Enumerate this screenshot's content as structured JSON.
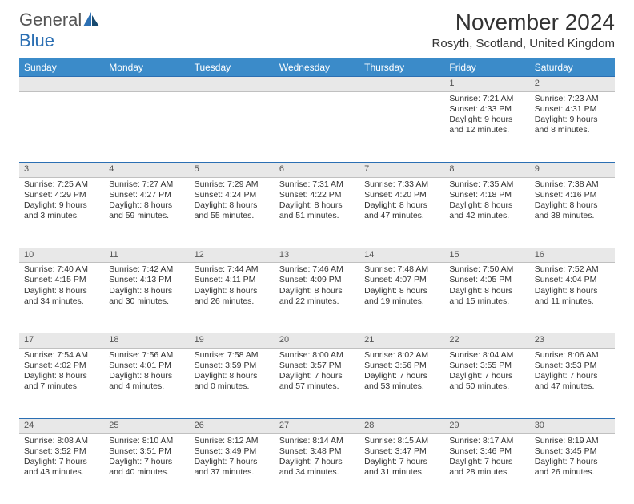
{
  "brand": {
    "word1": "General",
    "word2": "Blue"
  },
  "title": "November 2024",
  "location": "Rosyth, Scotland, United Kingdom",
  "colors": {
    "header_bg": "#3b8bc9",
    "header_text": "#ffffff",
    "daynum_bg": "#e8e8e8",
    "border_top": "#2b6fb3",
    "text": "#333333",
    "brand_blue": "#2b6fb3"
  },
  "dayHeaders": [
    "Sunday",
    "Monday",
    "Tuesday",
    "Wednesday",
    "Thursday",
    "Friday",
    "Saturday"
  ],
  "weeks": [
    [
      null,
      null,
      null,
      null,
      null,
      {
        "n": "1",
        "sr": "Sunrise: 7:21 AM",
        "ss": "Sunset: 4:33 PM",
        "dl": "Daylight: 9 hours and 12 minutes."
      },
      {
        "n": "2",
        "sr": "Sunrise: 7:23 AM",
        "ss": "Sunset: 4:31 PM",
        "dl": "Daylight: 9 hours and 8 minutes."
      }
    ],
    [
      {
        "n": "3",
        "sr": "Sunrise: 7:25 AM",
        "ss": "Sunset: 4:29 PM",
        "dl": "Daylight: 9 hours and 3 minutes."
      },
      {
        "n": "4",
        "sr": "Sunrise: 7:27 AM",
        "ss": "Sunset: 4:27 PM",
        "dl": "Daylight: 8 hours and 59 minutes."
      },
      {
        "n": "5",
        "sr": "Sunrise: 7:29 AM",
        "ss": "Sunset: 4:24 PM",
        "dl": "Daylight: 8 hours and 55 minutes."
      },
      {
        "n": "6",
        "sr": "Sunrise: 7:31 AM",
        "ss": "Sunset: 4:22 PM",
        "dl": "Daylight: 8 hours and 51 minutes."
      },
      {
        "n": "7",
        "sr": "Sunrise: 7:33 AM",
        "ss": "Sunset: 4:20 PM",
        "dl": "Daylight: 8 hours and 47 minutes."
      },
      {
        "n": "8",
        "sr": "Sunrise: 7:35 AM",
        "ss": "Sunset: 4:18 PM",
        "dl": "Daylight: 8 hours and 42 minutes."
      },
      {
        "n": "9",
        "sr": "Sunrise: 7:38 AM",
        "ss": "Sunset: 4:16 PM",
        "dl": "Daylight: 8 hours and 38 minutes."
      }
    ],
    [
      {
        "n": "10",
        "sr": "Sunrise: 7:40 AM",
        "ss": "Sunset: 4:15 PM",
        "dl": "Daylight: 8 hours and 34 minutes."
      },
      {
        "n": "11",
        "sr": "Sunrise: 7:42 AM",
        "ss": "Sunset: 4:13 PM",
        "dl": "Daylight: 8 hours and 30 minutes."
      },
      {
        "n": "12",
        "sr": "Sunrise: 7:44 AM",
        "ss": "Sunset: 4:11 PM",
        "dl": "Daylight: 8 hours and 26 minutes."
      },
      {
        "n": "13",
        "sr": "Sunrise: 7:46 AM",
        "ss": "Sunset: 4:09 PM",
        "dl": "Daylight: 8 hours and 22 minutes."
      },
      {
        "n": "14",
        "sr": "Sunrise: 7:48 AM",
        "ss": "Sunset: 4:07 PM",
        "dl": "Daylight: 8 hours and 19 minutes."
      },
      {
        "n": "15",
        "sr": "Sunrise: 7:50 AM",
        "ss": "Sunset: 4:05 PM",
        "dl": "Daylight: 8 hours and 15 minutes."
      },
      {
        "n": "16",
        "sr": "Sunrise: 7:52 AM",
        "ss": "Sunset: 4:04 PM",
        "dl": "Daylight: 8 hours and 11 minutes."
      }
    ],
    [
      {
        "n": "17",
        "sr": "Sunrise: 7:54 AM",
        "ss": "Sunset: 4:02 PM",
        "dl": "Daylight: 8 hours and 7 minutes."
      },
      {
        "n": "18",
        "sr": "Sunrise: 7:56 AM",
        "ss": "Sunset: 4:01 PM",
        "dl": "Daylight: 8 hours and 4 minutes."
      },
      {
        "n": "19",
        "sr": "Sunrise: 7:58 AM",
        "ss": "Sunset: 3:59 PM",
        "dl": "Daylight: 8 hours and 0 minutes."
      },
      {
        "n": "20",
        "sr": "Sunrise: 8:00 AM",
        "ss": "Sunset: 3:57 PM",
        "dl": "Daylight: 7 hours and 57 minutes."
      },
      {
        "n": "21",
        "sr": "Sunrise: 8:02 AM",
        "ss": "Sunset: 3:56 PM",
        "dl": "Daylight: 7 hours and 53 minutes."
      },
      {
        "n": "22",
        "sr": "Sunrise: 8:04 AM",
        "ss": "Sunset: 3:55 PM",
        "dl": "Daylight: 7 hours and 50 minutes."
      },
      {
        "n": "23",
        "sr": "Sunrise: 8:06 AM",
        "ss": "Sunset: 3:53 PM",
        "dl": "Daylight: 7 hours and 47 minutes."
      }
    ],
    [
      {
        "n": "24",
        "sr": "Sunrise: 8:08 AM",
        "ss": "Sunset: 3:52 PM",
        "dl": "Daylight: 7 hours and 43 minutes."
      },
      {
        "n": "25",
        "sr": "Sunrise: 8:10 AM",
        "ss": "Sunset: 3:51 PM",
        "dl": "Daylight: 7 hours and 40 minutes."
      },
      {
        "n": "26",
        "sr": "Sunrise: 8:12 AM",
        "ss": "Sunset: 3:49 PM",
        "dl": "Daylight: 7 hours and 37 minutes."
      },
      {
        "n": "27",
        "sr": "Sunrise: 8:14 AM",
        "ss": "Sunset: 3:48 PM",
        "dl": "Daylight: 7 hours and 34 minutes."
      },
      {
        "n": "28",
        "sr": "Sunrise: 8:15 AM",
        "ss": "Sunset: 3:47 PM",
        "dl": "Daylight: 7 hours and 31 minutes."
      },
      {
        "n": "29",
        "sr": "Sunrise: 8:17 AM",
        "ss": "Sunset: 3:46 PM",
        "dl": "Daylight: 7 hours and 28 minutes."
      },
      {
        "n": "30",
        "sr": "Sunrise: 8:19 AM",
        "ss": "Sunset: 3:45 PM",
        "dl": "Daylight: 7 hours and 26 minutes."
      }
    ]
  ]
}
